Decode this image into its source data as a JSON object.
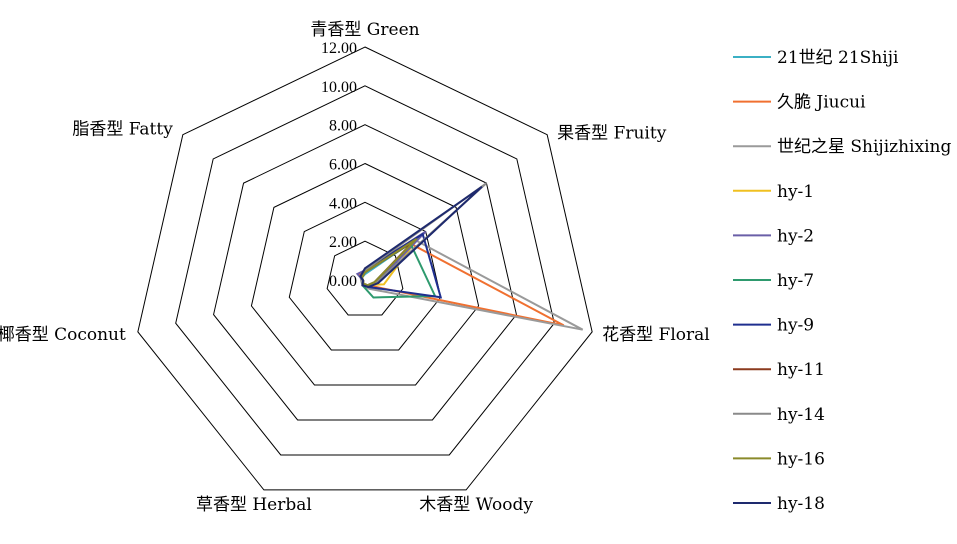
{
  "chart_data": {
    "type": "radar",
    "axes": [
      "青香型 Green",
      "果香型 Fruity",
      "花香型 Floral",
      "木香型 Woody",
      "草香型 Herbal",
      "椰香型 Coconut",
      "脂香型 Fatty"
    ],
    "r_ticks": [
      "0.00",
      "2.00",
      "4.00",
      "6.00",
      "8.00",
      "10.00",
      "12.00"
    ],
    "r_range": [
      0,
      12
    ],
    "grid": true,
    "legend_position": "right",
    "series": [
      {
        "name": "21世纪 21Shiji",
        "color": "#3BB0C4",
        "values": [
          0.3,
          3.5,
          0.5,
          0.3,
          0.2,
          0.1,
          0.2
        ]
      },
      {
        "name": "久脆 Jiucui",
        "color": "#F07030",
        "values": [
          0.5,
          3.0,
          10.5,
          0.3,
          0.2,
          0.1,
          0.4
        ]
      },
      {
        "name": "世纪之星 Shijizhixing",
        "color": "#9A9A9A",
        "values": [
          0.4,
          3.3,
          11.5,
          0.5,
          0.3,
          0.2,
          0.3
        ]
      },
      {
        "name": "hy-1",
        "color": "#F0C020",
        "values": [
          0.6,
          3.5,
          1.0,
          0.3,
          0.2,
          0.1,
          0.2
        ]
      },
      {
        "name": "hy-2",
        "color": "#6A5FA8",
        "values": [
          0.5,
          4.0,
          0.6,
          0.4,
          0.2,
          0.1,
          0.5
        ]
      },
      {
        "name": "hy-7",
        "color": "#2E9A6E",
        "values": [
          0.4,
          3.0,
          3.7,
          1.0,
          0.3,
          0.1,
          0.3
        ]
      },
      {
        "name": "hy-9",
        "color": "#1F2F8F",
        "values": [
          0.5,
          3.8,
          4.0,
          0.4,
          0.3,
          0.1,
          0.3
        ]
      },
      {
        "name": "hy-11",
        "color": "#8B3A1E",
        "values": [
          0.4,
          3.2,
          0.5,
          0.3,
          0.2,
          0.1,
          0.2
        ]
      },
      {
        "name": "hy-14",
        "color": "#8A8A8A",
        "values": [
          0.5,
          8.0,
          0.6,
          0.3,
          0.2,
          0.1,
          0.3
        ]
      },
      {
        "name": "hy-16",
        "color": "#8A8A2A",
        "values": [
          0.4,
          3.4,
          0.5,
          0.3,
          0.2,
          0.1,
          0.2
        ]
      },
      {
        "name": "hy-18",
        "color": "#1E2A6E",
        "values": [
          0.6,
          7.7,
          0.7,
          0.4,
          0.3,
          0.1,
          0.3
        ]
      }
    ]
  }
}
